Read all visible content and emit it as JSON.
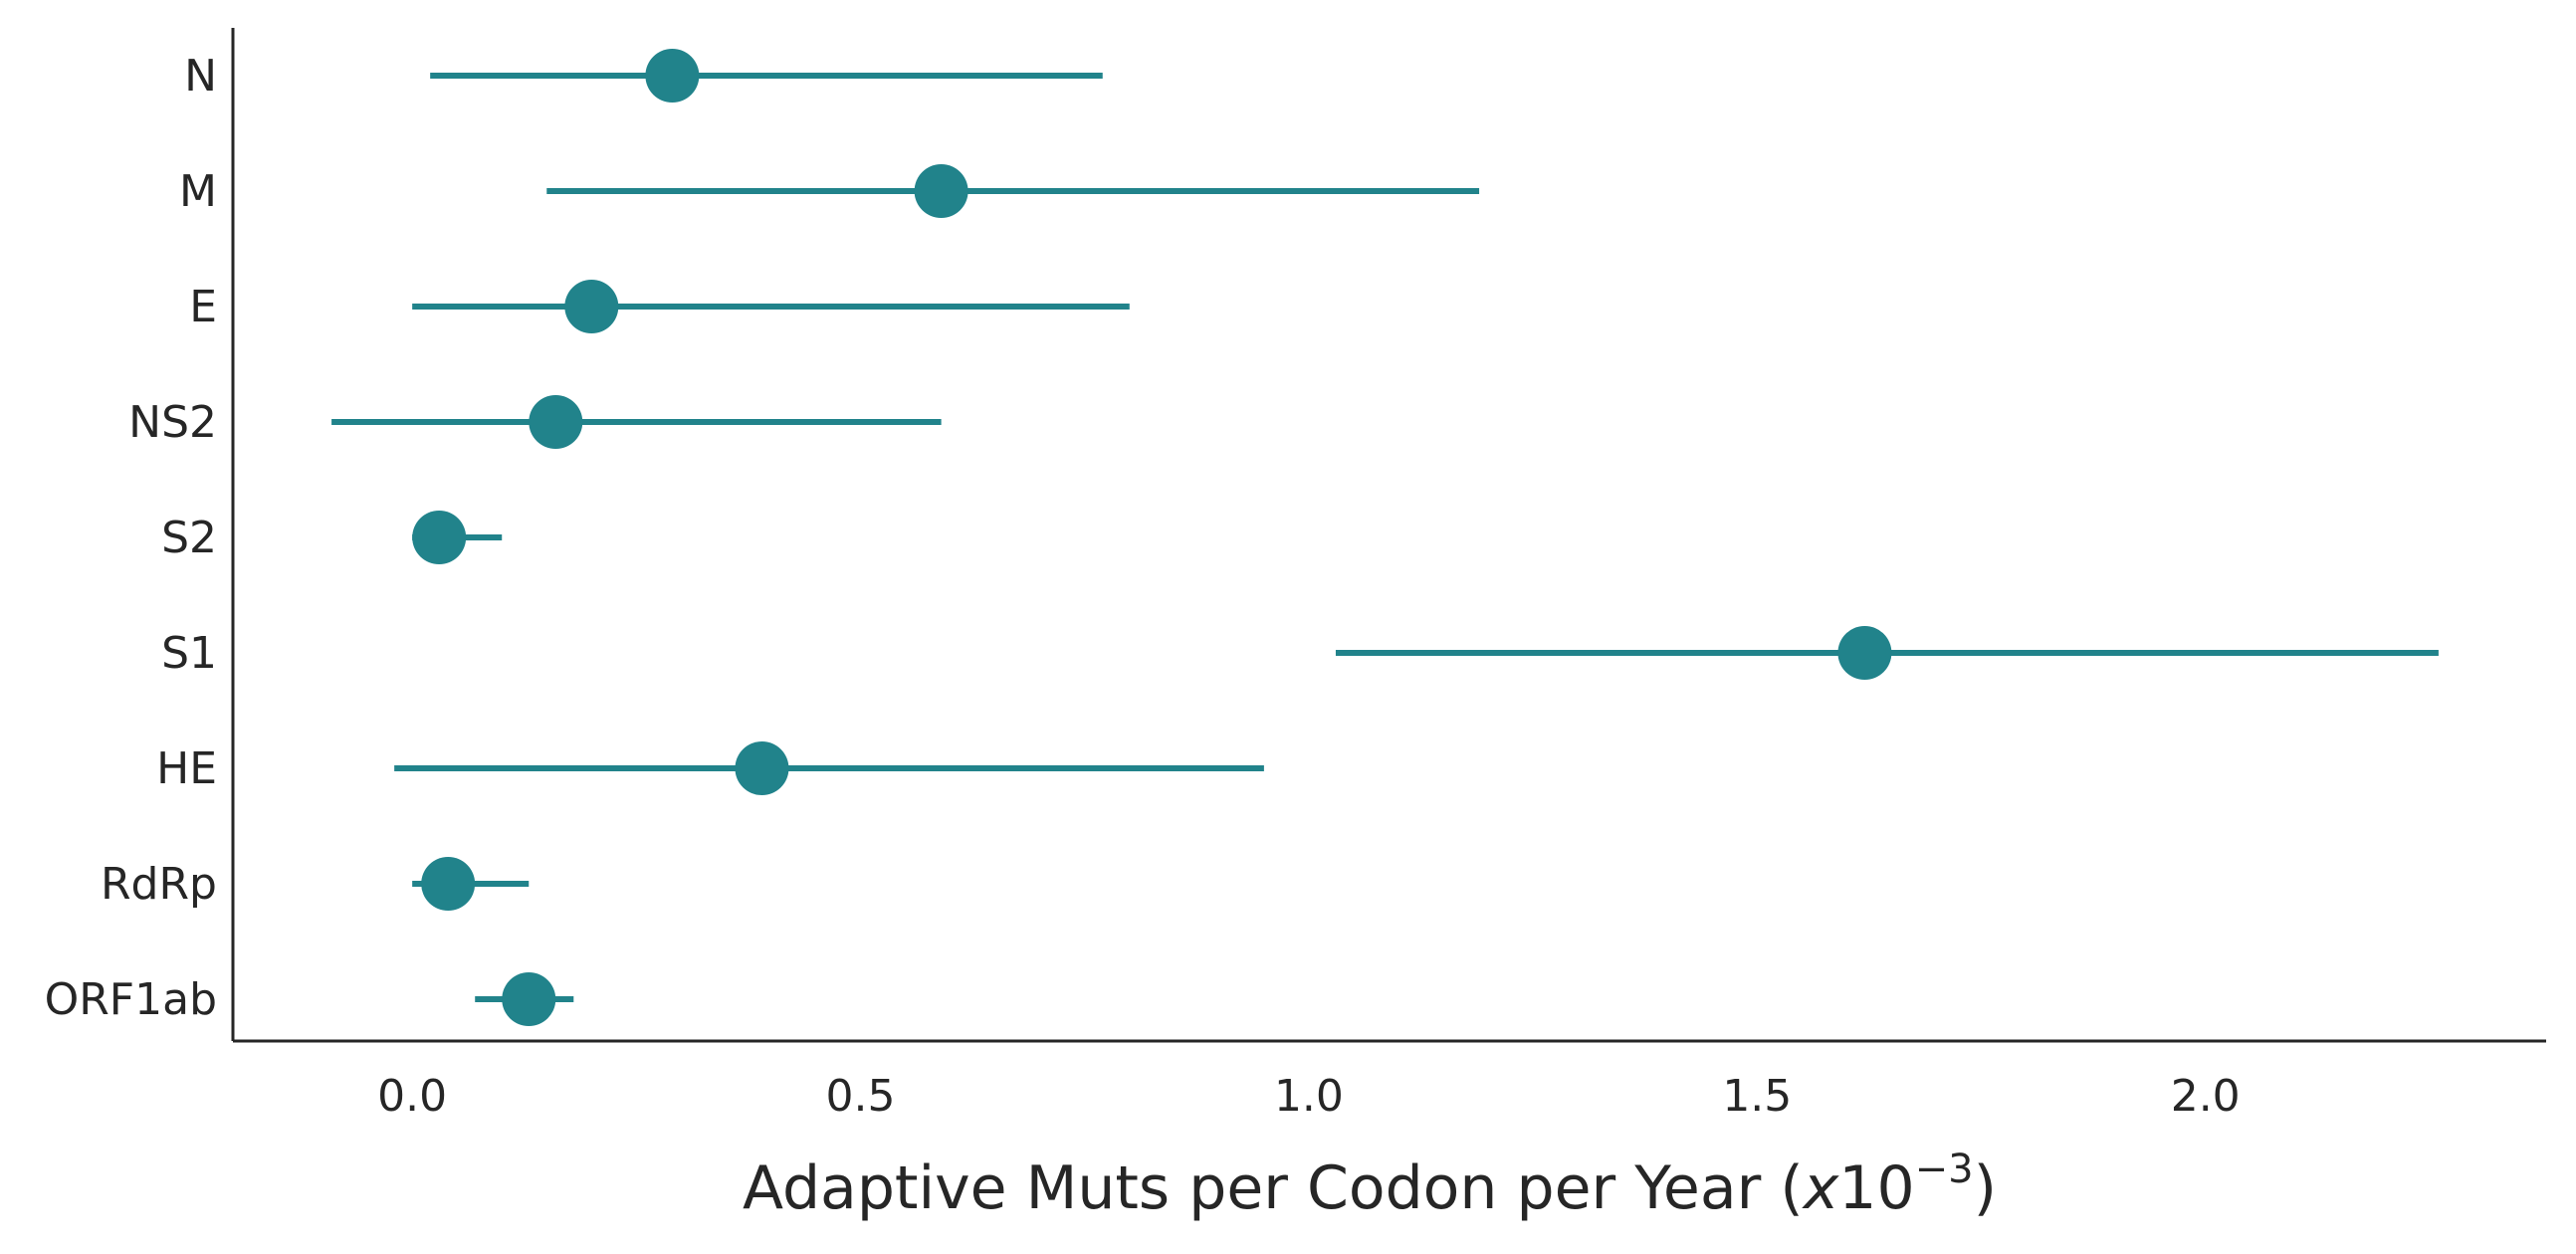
{
  "chart_data": {
    "type": "scatter",
    "subtype": "point-with-error-bars",
    "orientation": "horizontal",
    "title": "",
    "xlabel": "Adaptive Muts per Codon per Year (x10^-3)",
    "xlabel_parts": {
      "main": "Adaptive Muts per Codon per Year (",
      "italic": "x",
      "base": "10",
      "exponent": "−3",
      "close": ")"
    },
    "ylabel": "",
    "xlim": [
      -0.2,
      2.38
    ],
    "xticks": [
      0.0,
      0.5,
      1.0,
      1.5,
      2.0
    ],
    "xtick_labels": [
      "0.0",
      "0.5",
      "1.0",
      "1.5",
      "2.0"
    ],
    "categories": [
      "N",
      "M",
      "E",
      "NS2",
      "S2",
      "S1",
      "HE",
      "RdRp",
      "ORF1ab"
    ],
    "values": [
      0.29,
      0.59,
      0.2,
      0.16,
      0.03,
      1.62,
      0.39,
      0.04,
      0.13
    ],
    "ci_low": [
      0.02,
      0.15,
      0.0,
      -0.09,
      0.0,
      1.03,
      -0.02,
      0.0,
      0.07
    ],
    "ci_high": [
      0.77,
      1.19,
      0.8,
      0.59,
      0.1,
      2.26,
      0.95,
      0.13,
      0.18
    ],
    "grid": false,
    "legend": "none",
    "colors": {
      "series": "#21838b",
      "axis": "#262626"
    }
  }
}
